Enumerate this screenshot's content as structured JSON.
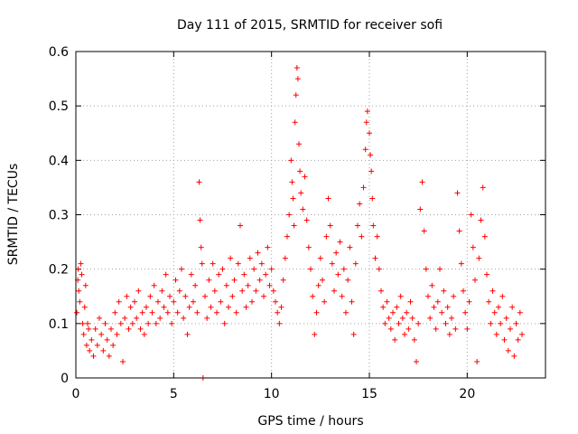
{
  "chart_data": {
    "type": "scatter",
    "title": "Day 111 of 2015, SRMTID for receiver sofi",
    "xlabel": "GPS time / hours",
    "ylabel": "SRMTID / TECUs",
    "xlim": [
      0,
      24
    ],
    "ylim": [
      0,
      0.6
    ],
    "x_ticks": [
      0,
      5,
      10,
      15,
      20
    ],
    "x_tick_labels": [
      "0",
      "5",
      "10",
      "15",
      "20"
    ],
    "y_ticks": [
      0,
      0.1,
      0.2,
      0.3,
      0.4,
      0.5,
      0.6
    ],
    "y_tick_labels": [
      "0",
      "0.1",
      "0.2",
      "0.3",
      "0.4",
      "0.5",
      "0.6"
    ],
    "grid": true,
    "marker": "+",
    "series": [
      {
        "name": "SRMTID",
        "color": "#ff0000",
        "points": [
          [
            0.05,
            0.12
          ],
          [
            0.1,
            0.18
          ],
          [
            0.12,
            0.2
          ],
          [
            0.15,
            0.16
          ],
          [
            0.2,
            0.14
          ],
          [
            0.25,
            0.21
          ],
          [
            0.3,
            0.19
          ],
          [
            0.35,
            0.1
          ],
          [
            0.4,
            0.08
          ],
          [
            0.45,
            0.13
          ],
          [
            0.5,
            0.17
          ],
          [
            0.55,
            0.06
          ],
          [
            0.6,
            0.1
          ],
          [
            0.65,
            0.09
          ],
          [
            0.7,
            0.05
          ],
          [
            0.8,
            0.07
          ],
          [
            0.9,
            0.04
          ],
          [
            1.0,
            0.09
          ],
          [
            1.1,
            0.06
          ],
          [
            1.2,
            0.11
          ],
          [
            1.3,
            0.08
          ],
          [
            1.4,
            0.05
          ],
          [
            1.5,
            0.1
          ],
          [
            1.6,
            0.07
          ],
          [
            1.7,
            0.04
          ],
          [
            1.8,
            0.09
          ],
          [
            1.9,
            0.06
          ],
          [
            2.0,
            0.12
          ],
          [
            2.1,
            0.08
          ],
          [
            2.2,
            0.14
          ],
          [
            2.3,
            0.1
          ],
          [
            2.4,
            0.03
          ],
          [
            2.5,
            0.11
          ],
          [
            2.6,
            0.15
          ],
          [
            2.7,
            0.09
          ],
          [
            2.8,
            0.13
          ],
          [
            2.9,
            0.1
          ],
          [
            3.0,
            0.14
          ],
          [
            3.1,
            0.11
          ],
          [
            3.2,
            0.16
          ],
          [
            3.3,
            0.09
          ],
          [
            3.4,
            0.12
          ],
          [
            3.5,
            0.08
          ],
          [
            3.6,
            0.13
          ],
          [
            3.7,
            0.1
          ],
          [
            3.8,
            0.15
          ],
          [
            3.9,
            0.12
          ],
          [
            4.0,
            0.17
          ],
          [
            4.1,
            0.1
          ],
          [
            4.2,
            0.14
          ],
          [
            4.3,
            0.11
          ],
          [
            4.4,
            0.16
          ],
          [
            4.5,
            0.13
          ],
          [
            4.6,
            0.19
          ],
          [
            4.7,
            0.12
          ],
          [
            4.8,
            0.15
          ],
          [
            4.9,
            0.1
          ],
          [
            5.0,
            0.14
          ],
          [
            5.1,
            0.18
          ],
          [
            5.2,
            0.12
          ],
          [
            5.3,
            0.16
          ],
          [
            5.4,
            0.2
          ],
          [
            5.5,
            0.11
          ],
          [
            5.6,
            0.15
          ],
          [
            5.7,
            0.08
          ],
          [
            5.8,
            0.13
          ],
          [
            5.9,
            0.19
          ],
          [
            6.0,
            0.14
          ],
          [
            6.1,
            0.17
          ],
          [
            6.2,
            0.12
          ],
          [
            6.3,
            0.36
          ],
          [
            6.35,
            0.29
          ],
          [
            6.4,
            0.24
          ],
          [
            6.45,
            0.21
          ],
          [
            6.5,
            0.0
          ],
          [
            6.6,
            0.15
          ],
          [
            6.7,
            0.11
          ],
          [
            6.8,
            0.18
          ],
          [
            6.9,
            0.13
          ],
          [
            7.0,
            0.21
          ],
          [
            7.1,
            0.16
          ],
          [
            7.2,
            0.12
          ],
          [
            7.3,
            0.19
          ],
          [
            7.4,
            0.14
          ],
          [
            7.5,
            0.2
          ],
          [
            7.6,
            0.1
          ],
          [
            7.7,
            0.17
          ],
          [
            7.8,
            0.13
          ],
          [
            7.9,
            0.22
          ],
          [
            8.0,
            0.15
          ],
          [
            8.1,
            0.18
          ],
          [
            8.2,
            0.12
          ],
          [
            8.3,
            0.21
          ],
          [
            8.4,
            0.28
          ],
          [
            8.5,
            0.16
          ],
          [
            8.6,
            0.19
          ],
          [
            8.7,
            0.13
          ],
          [
            8.8,
            0.17
          ],
          [
            8.9,
            0.22
          ],
          [
            9.0,
            0.14
          ],
          [
            9.1,
            0.2
          ],
          [
            9.2,
            0.16
          ],
          [
            9.3,
            0.23
          ],
          [
            9.4,
            0.18
          ],
          [
            9.5,
            0.21
          ],
          [
            9.6,
            0.15
          ],
          [
            9.7,
            0.19
          ],
          [
            9.8,
            0.24
          ],
          [
            9.9,
            0.17
          ],
          [
            10.0,
            0.2
          ],
          [
            10.1,
            0.16
          ],
          [
            10.2,
            0.14
          ],
          [
            10.3,
            0.12
          ],
          [
            10.4,
            0.1
          ],
          [
            10.5,
            0.13
          ],
          [
            10.6,
            0.18
          ],
          [
            10.7,
            0.22
          ],
          [
            10.8,
            0.26
          ],
          [
            10.9,
            0.3
          ],
          [
            11.0,
            0.4
          ],
          [
            11.05,
            0.36
          ],
          [
            11.1,
            0.33
          ],
          [
            11.15,
            0.28
          ],
          [
            11.2,
            0.47
          ],
          [
            11.25,
            0.52
          ],
          [
            11.3,
            0.57
          ],
          [
            11.35,
            0.55
          ],
          [
            11.4,
            0.43
          ],
          [
            11.45,
            0.38
          ],
          [
            11.5,
            0.34
          ],
          [
            11.6,
            0.31
          ],
          [
            11.7,
            0.37
          ],
          [
            11.8,
            0.29
          ],
          [
            11.9,
            0.24
          ],
          [
            12.0,
            0.2
          ],
          [
            12.1,
            0.15
          ],
          [
            12.2,
            0.08
          ],
          [
            12.3,
            0.12
          ],
          [
            12.4,
            0.17
          ],
          [
            12.5,
            0.22
          ],
          [
            12.6,
            0.18
          ],
          [
            12.7,
            0.14
          ],
          [
            12.8,
            0.26
          ],
          [
            12.9,
            0.33
          ],
          [
            13.0,
            0.28
          ],
          [
            13.1,
            0.21
          ],
          [
            13.2,
            0.16
          ],
          [
            13.3,
            0.23
          ],
          [
            13.4,
            0.19
          ],
          [
            13.5,
            0.25
          ],
          [
            13.6,
            0.15
          ],
          [
            13.7,
            0.2
          ],
          [
            13.8,
            0.12
          ],
          [
            13.9,
            0.18
          ],
          [
            14.0,
            0.24
          ],
          [
            14.1,
            0.14
          ],
          [
            14.2,
            0.08
          ],
          [
            14.3,
            0.21
          ],
          [
            14.4,
            0.28
          ],
          [
            14.5,
            0.32
          ],
          [
            14.6,
            0.26
          ],
          [
            14.7,
            0.35
          ],
          [
            14.8,
            0.42
          ],
          [
            14.85,
            0.47
          ],
          [
            14.9,
            0.49
          ],
          [
            15.0,
            0.45
          ],
          [
            15.05,
            0.41
          ],
          [
            15.1,
            0.38
          ],
          [
            15.15,
            0.33
          ],
          [
            15.2,
            0.28
          ],
          [
            15.3,
            0.22
          ],
          [
            15.4,
            0.26
          ],
          [
            15.5,
            0.2
          ],
          [
            15.6,
            0.16
          ],
          [
            15.7,
            0.13
          ],
          [
            15.8,
            0.1
          ],
          [
            15.9,
            0.14
          ],
          [
            16.0,
            0.11
          ],
          [
            16.1,
            0.09
          ],
          [
            16.2,
            0.12
          ],
          [
            16.3,
            0.07
          ],
          [
            16.4,
            0.13
          ],
          [
            16.5,
            0.1
          ],
          [
            16.6,
            0.15
          ],
          [
            16.7,
            0.11
          ],
          [
            16.8,
            0.08
          ],
          [
            16.9,
            0.12
          ],
          [
            17.0,
            0.09
          ],
          [
            17.1,
            0.14
          ],
          [
            17.2,
            0.11
          ],
          [
            17.3,
            0.07
          ],
          [
            17.4,
            0.03
          ],
          [
            17.5,
            0.1
          ],
          [
            17.6,
            0.31
          ],
          [
            17.7,
            0.36
          ],
          [
            17.8,
            0.27
          ],
          [
            17.9,
            0.2
          ],
          [
            18.0,
            0.15
          ],
          [
            18.1,
            0.11
          ],
          [
            18.2,
            0.17
          ],
          [
            18.3,
            0.13
          ],
          [
            18.4,
            0.09
          ],
          [
            18.5,
            0.14
          ],
          [
            18.6,
            0.2
          ],
          [
            18.7,
            0.12
          ],
          [
            18.8,
            0.16
          ],
          [
            18.9,
            0.1
          ],
          [
            19.0,
            0.13
          ],
          [
            19.1,
            0.08
          ],
          [
            19.2,
            0.11
          ],
          [
            19.3,
            0.15
          ],
          [
            19.4,
            0.09
          ],
          [
            19.5,
            0.34
          ],
          [
            19.6,
            0.27
          ],
          [
            19.7,
            0.21
          ],
          [
            19.8,
            0.16
          ],
          [
            19.9,
            0.12
          ],
          [
            20.0,
            0.09
          ],
          [
            20.1,
            0.14
          ],
          [
            20.2,
            0.3
          ],
          [
            20.3,
            0.24
          ],
          [
            20.4,
            0.18
          ],
          [
            20.5,
            0.03
          ],
          [
            20.6,
            0.22
          ],
          [
            20.7,
            0.29
          ],
          [
            20.8,
            0.35
          ],
          [
            20.9,
            0.26
          ],
          [
            21.0,
            0.19
          ],
          [
            21.1,
            0.14
          ],
          [
            21.2,
            0.1
          ],
          [
            21.3,
            0.16
          ],
          [
            21.4,
            0.12
          ],
          [
            21.5,
            0.08
          ],
          [
            21.6,
            0.13
          ],
          [
            21.7,
            0.1
          ],
          [
            21.8,
            0.15
          ],
          [
            21.9,
            0.07
          ],
          [
            22.0,
            0.11
          ],
          [
            22.1,
            0.05
          ],
          [
            22.2,
            0.09
          ],
          [
            22.3,
            0.13
          ],
          [
            22.4,
            0.04
          ],
          [
            22.5,
            0.1
          ],
          [
            22.6,
            0.07
          ],
          [
            22.7,
            0.12
          ],
          [
            22.8,
            0.08
          ]
        ]
      }
    ]
  }
}
